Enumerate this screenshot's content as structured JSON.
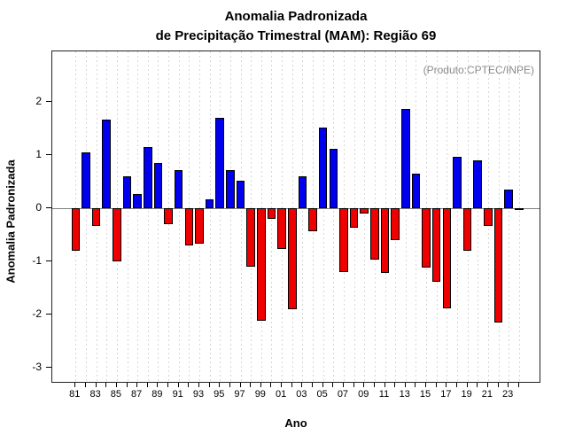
{
  "header": {
    "title_line1": "Anomalia Padronizada",
    "title_line2": "de Precipitação Trimestral (MAM): Região 69"
  },
  "chart_data": {
    "type": "bar",
    "title": "Anomalia Padronizada de Precipitação Trimestral (MAM): Região 69",
    "xlabel": "Ano",
    "ylabel": "Anomalia Padronizada",
    "annotation": "(Produto:CPTEC/INPE)",
    "grid": "vertical-dashed-per-year",
    "legend": null,
    "ylim": [
      -3.3,
      2.95
    ],
    "y_ticks": [
      -3,
      -2,
      -1,
      0,
      1,
      2
    ],
    "x_tick_labels": [
      "81",
      "83",
      "85",
      "87",
      "89",
      "91",
      "93",
      "95",
      "97",
      "99",
      "01",
      "03",
      "05",
      "07",
      "09",
      "11",
      "13",
      "15",
      "17",
      "19",
      "21",
      "23"
    ],
    "years": [
      1981,
      1982,
      1983,
      1984,
      1985,
      1986,
      1987,
      1988,
      1989,
      1990,
      1991,
      1992,
      1993,
      1994,
      1995,
      1996,
      1997,
      1998,
      1999,
      2000,
      2001,
      2002,
      2003,
      2004,
      2005,
      2006,
      2007,
      2008,
      2009,
      2010,
      2011,
      2012,
      2013,
      2014,
      2015,
      2016,
      2017,
      2018,
      2019,
      2020,
      2021,
      2022,
      2023,
      2024
    ],
    "values": [
      -0.8,
      1.05,
      -0.33,
      1.68,
      -1.0,
      0.61,
      0.28,
      1.15,
      0.86,
      -0.3,
      0.72,
      -0.7,
      -0.66,
      0.18,
      1.7,
      0.72,
      0.53,
      -1.1,
      -2.12,
      -0.2,
      -0.77,
      -1.9,
      0.6,
      -0.43,
      1.52,
      1.12,
      -1.2,
      -0.37,
      -0.1,
      -0.97,
      -1.22,
      -0.6,
      1.87,
      0.65,
      -1.12,
      -1.38,
      -1.88,
      0.98,
      -0.79,
      0.9,
      -0.33,
      -2.15,
      0.35,
      -0.02
    ],
    "colors": {
      "positive": "#0000ee",
      "negative": "#ee0000",
      "zero_line": "#7f7f7f"
    }
  }
}
